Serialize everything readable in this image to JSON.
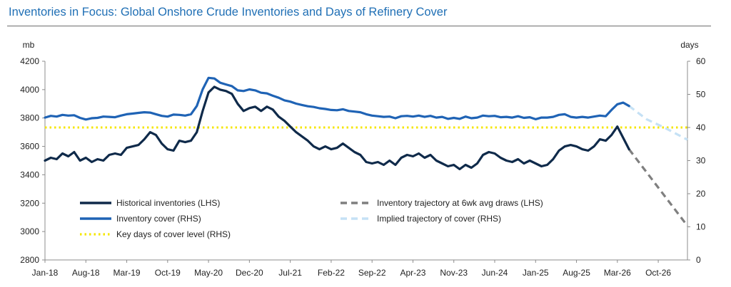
{
  "header": {
    "title": "Inventories in Focus: Global Onshore Crude Inventories and Days of Refinery Cover"
  },
  "chart_data": {
    "type": "line",
    "title": "Inventories in Focus: Global Onshore Crude Inventories and Days of Refinery Cover",
    "y_left_unit": "mb",
    "y_right_unit": "days",
    "y_left_range": [
      2800,
      4200
    ],
    "y_right_range": [
      0,
      60
    ],
    "y_left_ticks": [
      "2800",
      "3000",
      "3200",
      "3400",
      "3600",
      "3800",
      "4000",
      "4200"
    ],
    "y_right_ticks": [
      "0",
      "10",
      "20",
      "30",
      "40",
      "50",
      "60"
    ],
    "x_ticks": [
      "Jan-18",
      "Aug-18",
      "Mar-19",
      "Oct-19",
      "May-20",
      "Dec-20",
      "Jul-21",
      "Feb-22",
      "Sep-22",
      "Apr-23",
      "Nov-23",
      "Jun-24",
      "Jan-25",
      "Aug-25",
      "Mar-26",
      "Oct-26"
    ],
    "x_range": [
      "2018-01",
      "2027-03"
    ],
    "grid": false,
    "legend_placement": "bottom",
    "series": [
      {
        "name": "Historical inventories (LHS)",
        "axis": "left",
        "color": "#0f2a4a",
        "style": "solid",
        "points": [
          [
            "2018-01",
            3500
          ],
          [
            "2018-02",
            3520
          ],
          [
            "2018-03",
            3510
          ],
          [
            "2018-04",
            3550
          ],
          [
            "2018-05",
            3530
          ],
          [
            "2018-06",
            3560
          ],
          [
            "2018-07",
            3500
          ],
          [
            "2018-08",
            3520
          ],
          [
            "2018-09",
            3490
          ],
          [
            "2018-10",
            3510
          ],
          [
            "2018-11",
            3500
          ],
          [
            "2018-12",
            3540
          ],
          [
            "2019-01",
            3550
          ],
          [
            "2019-02",
            3540
          ],
          [
            "2019-03",
            3590
          ],
          [
            "2019-04",
            3600
          ],
          [
            "2019-05",
            3610
          ],
          [
            "2019-06",
            3650
          ],
          [
            "2019-07",
            3700
          ],
          [
            "2019-08",
            3680
          ],
          [
            "2019-09",
            3620
          ],
          [
            "2019-10",
            3580
          ],
          [
            "2019-11",
            3570
          ],
          [
            "2019-12",
            3640
          ],
          [
            "2020-01",
            3630
          ],
          [
            "2020-02",
            3640
          ],
          [
            "2020-03",
            3700
          ],
          [
            "2020-04",
            3850
          ],
          [
            "2020-05",
            3980
          ],
          [
            "2020-06",
            4020
          ],
          [
            "2020-07",
            4000
          ],
          [
            "2020-08",
            3990
          ],
          [
            "2020-09",
            3970
          ],
          [
            "2020-10",
            3900
          ],
          [
            "2020-11",
            3850
          ],
          [
            "2020-12",
            3870
          ],
          [
            "2021-01",
            3880
          ],
          [
            "2021-02",
            3850
          ],
          [
            "2021-03",
            3880
          ],
          [
            "2021-04",
            3860
          ],
          [
            "2021-05",
            3810
          ],
          [
            "2021-06",
            3780
          ],
          [
            "2021-07",
            3740
          ],
          [
            "2021-08",
            3700
          ],
          [
            "2021-09",
            3670
          ],
          [
            "2021-10",
            3640
          ],
          [
            "2021-11",
            3600
          ],
          [
            "2021-12",
            3580
          ],
          [
            "2022-01",
            3600
          ],
          [
            "2022-02",
            3580
          ],
          [
            "2022-03",
            3590
          ],
          [
            "2022-04",
            3620
          ],
          [
            "2022-05",
            3590
          ],
          [
            "2022-06",
            3560
          ],
          [
            "2022-07",
            3540
          ],
          [
            "2022-08",
            3490
          ],
          [
            "2022-09",
            3480
          ],
          [
            "2022-10",
            3490
          ],
          [
            "2022-11",
            3470
          ],
          [
            "2022-12",
            3500
          ],
          [
            "2023-01",
            3470
          ],
          [
            "2023-02",
            3520
          ],
          [
            "2023-03",
            3540
          ],
          [
            "2023-04",
            3530
          ],
          [
            "2023-05",
            3550
          ],
          [
            "2023-06",
            3520
          ],
          [
            "2023-07",
            3540
          ],
          [
            "2023-08",
            3500
          ],
          [
            "2023-09",
            3480
          ],
          [
            "2023-10",
            3460
          ],
          [
            "2023-11",
            3470
          ],
          [
            "2023-12",
            3440
          ],
          [
            "2024-01",
            3470
          ],
          [
            "2024-02",
            3450
          ],
          [
            "2024-03",
            3480
          ],
          [
            "2024-04",
            3540
          ],
          [
            "2024-05",
            3560
          ],
          [
            "2024-06",
            3550
          ],
          [
            "2024-07",
            3520
          ],
          [
            "2024-08",
            3500
          ],
          [
            "2024-09",
            3490
          ],
          [
            "2024-10",
            3510
          ],
          [
            "2024-11",
            3480
          ],
          [
            "2024-12",
            3500
          ],
          [
            "2025-01",
            3480
          ],
          [
            "2025-02",
            3460
          ],
          [
            "2025-03",
            3470
          ],
          [
            "2025-04",
            3510
          ],
          [
            "2025-05",
            3570
          ],
          [
            "2025-06",
            3600
          ],
          [
            "2025-07",
            3610
          ],
          [
            "2025-08",
            3600
          ],
          [
            "2025-09",
            3580
          ],
          [
            "2025-10",
            3570
          ],
          [
            "2025-11",
            3600
          ],
          [
            "2025-12",
            3650
          ],
          [
            "2026-01",
            3640
          ],
          [
            "2026-02",
            3680
          ],
          [
            "2026-03",
            3740
          ],
          [
            "2026-04",
            3660
          ],
          [
            "2026-05",
            3580
          ]
        ]
      },
      {
        "name": "Inventory cover (RHS)",
        "axis": "right",
        "color": "#1f63b5",
        "style": "solid",
        "points": [
          [
            "2018-01",
            43.0
          ],
          [
            "2018-02",
            43.5
          ],
          [
            "2018-03",
            43.3
          ],
          [
            "2018-04",
            43.8
          ],
          [
            "2018-05",
            43.6
          ],
          [
            "2018-06",
            43.7
          ],
          [
            "2018-07",
            42.9
          ],
          [
            "2018-08",
            42.4
          ],
          [
            "2018-09",
            42.8
          ],
          [
            "2018-10",
            42.9
          ],
          [
            "2018-11",
            43.3
          ],
          [
            "2018-12",
            43.2
          ],
          [
            "2019-01",
            43.1
          ],
          [
            "2019-02",
            43.6
          ],
          [
            "2019-03",
            44.0
          ],
          [
            "2019-04",
            44.2
          ],
          [
            "2019-05",
            44.4
          ],
          [
            "2019-06",
            44.6
          ],
          [
            "2019-07",
            44.5
          ],
          [
            "2019-08",
            44.0
          ],
          [
            "2019-09",
            43.5
          ],
          [
            "2019-10",
            43.3
          ],
          [
            "2019-11",
            43.9
          ],
          [
            "2019-12",
            43.8
          ],
          [
            "2020-01",
            43.6
          ],
          [
            "2020-02",
            44.0
          ],
          [
            "2020-03",
            46.5
          ],
          [
            "2020-04",
            51.5
          ],
          [
            "2020-05",
            55.0
          ],
          [
            "2020-06",
            54.8
          ],
          [
            "2020-07",
            53.5
          ],
          [
            "2020-08",
            53.0
          ],
          [
            "2020-09",
            52.5
          ],
          [
            "2020-10",
            51.2
          ],
          [
            "2020-11",
            51.0
          ],
          [
            "2020-12",
            51.5
          ],
          [
            "2021-01",
            51.2
          ],
          [
            "2021-02",
            50.5
          ],
          [
            "2021-03",
            50.3
          ],
          [
            "2021-04",
            49.6
          ],
          [
            "2021-05",
            49.0
          ],
          [
            "2021-06",
            48.2
          ],
          [
            "2021-07",
            47.8
          ],
          [
            "2021-08",
            47.2
          ],
          [
            "2021-09",
            46.8
          ],
          [
            "2021-10",
            46.4
          ],
          [
            "2021-11",
            46.2
          ],
          [
            "2021-12",
            45.8
          ],
          [
            "2022-01",
            45.6
          ],
          [
            "2022-02",
            45.3
          ],
          [
            "2022-03",
            45.2
          ],
          [
            "2022-04",
            45.5
          ],
          [
            "2022-05",
            45.0
          ],
          [
            "2022-06",
            44.8
          ],
          [
            "2022-07",
            44.6
          ],
          [
            "2022-08",
            44.0
          ],
          [
            "2022-09",
            43.6
          ],
          [
            "2022-10",
            43.4
          ],
          [
            "2022-11",
            43.2
          ],
          [
            "2022-12",
            43.3
          ],
          [
            "2023-01",
            42.8
          ],
          [
            "2023-02",
            43.4
          ],
          [
            "2023-03",
            43.5
          ],
          [
            "2023-04",
            43.3
          ],
          [
            "2023-05",
            43.6
          ],
          [
            "2023-06",
            43.2
          ],
          [
            "2023-07",
            43.5
          ],
          [
            "2023-08",
            43.0
          ],
          [
            "2023-09",
            43.2
          ],
          [
            "2023-10",
            42.6
          ],
          [
            "2023-11",
            42.9
          ],
          [
            "2023-12",
            42.6
          ],
          [
            "2024-01",
            43.3
          ],
          [
            "2024-02",
            42.8
          ],
          [
            "2024-03",
            43.0
          ],
          [
            "2024-04",
            43.6
          ],
          [
            "2024-05",
            43.4
          ],
          [
            "2024-06",
            43.5
          ],
          [
            "2024-07",
            43.1
          ],
          [
            "2024-08",
            43.2
          ],
          [
            "2024-09",
            43.0
          ],
          [
            "2024-10",
            43.4
          ],
          [
            "2024-11",
            42.9
          ],
          [
            "2024-12",
            43.1
          ],
          [
            "2025-01",
            42.5
          ],
          [
            "2025-02",
            43.0
          ],
          [
            "2025-03",
            43.0
          ],
          [
            "2025-04",
            43.2
          ],
          [
            "2025-05",
            43.8
          ],
          [
            "2025-06",
            44.0
          ],
          [
            "2025-07",
            43.2
          ],
          [
            "2025-08",
            43.0
          ],
          [
            "2025-09",
            43.2
          ],
          [
            "2025-10",
            43.0
          ],
          [
            "2025-11",
            43.3
          ],
          [
            "2025-12",
            43.6
          ],
          [
            "2026-01",
            43.4
          ],
          [
            "2026-02",
            45.3
          ],
          [
            "2026-03",
            47.0
          ],
          [
            "2026-04",
            47.5
          ],
          [
            "2026-05",
            46.5
          ]
        ]
      },
      {
        "name": "Key days of cover level (RHS)",
        "axis": "right",
        "color": "#f5e600",
        "style": "dotted",
        "points": [
          [
            "2018-01",
            40
          ],
          [
            "2027-03",
            40
          ]
        ]
      },
      {
        "name": "Inventory trajectory at 6wk avg draws (LHS)",
        "axis": "left",
        "color": "#7f7f7f",
        "style": "dashed",
        "points": [
          [
            "2026-05",
            3580
          ],
          [
            "2027-03",
            3040
          ]
        ]
      },
      {
        "name": "Implied trajectory of cover (RHS)",
        "axis": "right",
        "color": "#c5e1f5",
        "style": "dashed",
        "points": [
          [
            "2026-05",
            46.5
          ],
          [
            "2026-08",
            42.5
          ],
          [
            "2026-11",
            40.0
          ],
          [
            "2027-03",
            36.3
          ]
        ]
      }
    ]
  }
}
